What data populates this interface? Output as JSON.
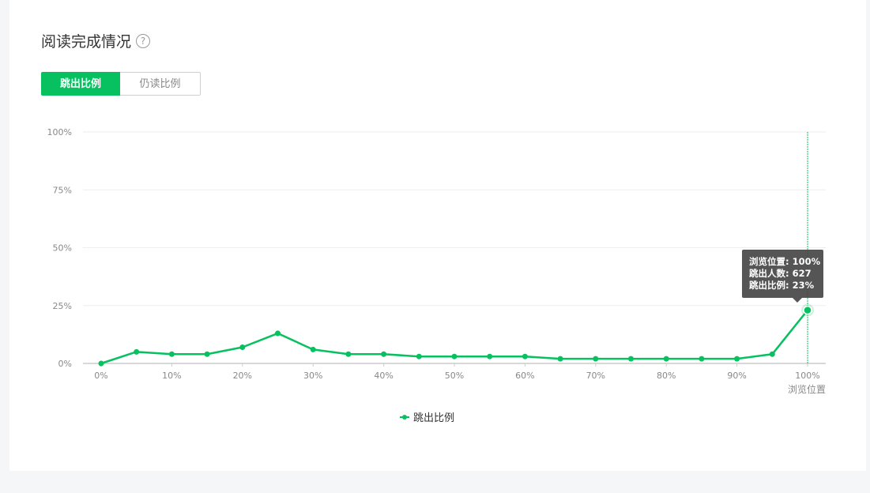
{
  "header": {
    "title": "阅读完成情况",
    "help_icon": "?"
  },
  "tabs": [
    {
      "label": "跳出比例",
      "active": true
    },
    {
      "label": "仍读比例",
      "active": false
    }
  ],
  "colors": {
    "accent": "#07c160",
    "grid": "#eeeeee",
    "axis": "#cccccc"
  },
  "tooltip": {
    "line1": "浏览位置: 100%",
    "line2": "跳出人数: 627",
    "line3": "跳出比例: 23%"
  },
  "legend": {
    "label": "跳出比例"
  },
  "chart_data": {
    "type": "line",
    "title": "",
    "xlabel": "浏览位置",
    "ylabel": "",
    "x_tick_labels": [
      "0%",
      "10%",
      "20%",
      "30%",
      "40%",
      "50%",
      "60%",
      "70%",
      "80%",
      "90%",
      "100%"
    ],
    "y_tick_labels": [
      "0%",
      "25%",
      "50%",
      "75%",
      "100%"
    ],
    "ylim": [
      0,
      100
    ],
    "xlim": [
      0,
      100
    ],
    "grid": true,
    "legend_position": "bottom-center",
    "series": [
      {
        "name": "跳出比例",
        "x": [
          0,
          5,
          10,
          15,
          20,
          25,
          30,
          35,
          40,
          45,
          50,
          55,
          60,
          65,
          70,
          75,
          80,
          85,
          90,
          95,
          100
        ],
        "values": [
          0,
          5,
          4,
          4,
          7,
          13,
          6,
          4,
          4,
          3,
          3,
          3,
          3,
          2,
          2,
          2,
          2,
          2,
          2,
          4,
          23
        ]
      }
    ],
    "highlighted_x": 100
  }
}
